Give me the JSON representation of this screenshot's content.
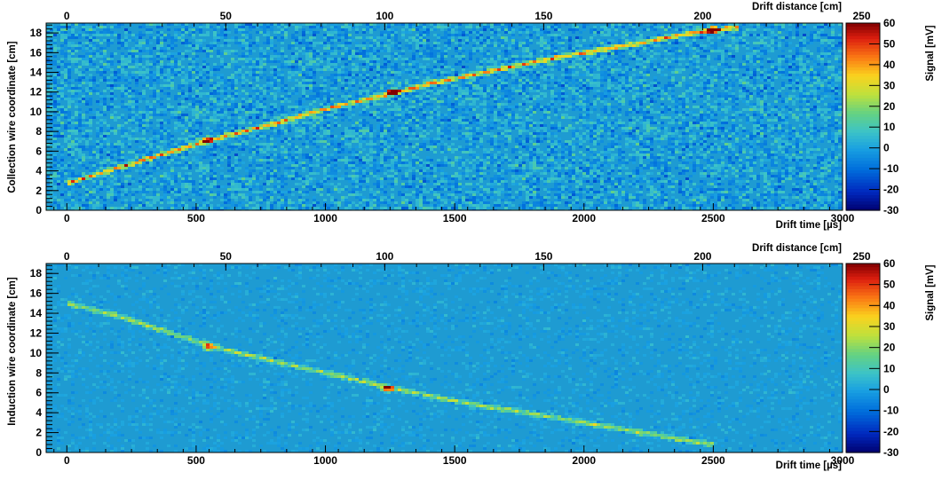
{
  "chart_data": [
    {
      "type": "heatmap",
      "panel": "collection",
      "ylabel": "Collection wire coordinate [cm]",
      "xlabel_bottom": "Drift time [µs]",
      "xlabel_top": "Drift distance [cm]",
      "zlabel": "Signal [mV]",
      "xlim": [
        -80,
        3000
      ],
      "ylim": [
        0,
        19
      ],
      "top_xlim": [
        -6.5,
        244
      ],
      "zlim": [
        -30,
        60
      ],
      "x_ticks": [
        "0",
        "500",
        "1000",
        "1500",
        "2000",
        "2500",
        "3000"
      ],
      "top_ticks": [
        "0",
        "50",
        "100",
        "150",
        "200",
        "250"
      ],
      "y_ticks": [
        "0",
        "2",
        "4",
        "6",
        "8",
        "10",
        "12",
        "14",
        "16",
        "18"
      ],
      "z_ticks": [
        "60",
        "50",
        "40",
        "30",
        "20",
        "10",
        "0",
        "-10",
        "-20",
        "-30"
      ],
      "noise_level": 8,
      "track": {
        "x": [
          0,
          200,
          400,
          600,
          800,
          1000,
          1200,
          1400,
          1600,
          1800,
          2000,
          2200,
          2400,
          2600
        ],
        "y": [
          2.7,
          4.3,
          5.9,
          7.4,
          8.8,
          10.3,
          11.5,
          12.8,
          13.9,
          15.0,
          16.0,
          16.9,
          17.9,
          18.6
        ],
        "signal": 45
      },
      "hotspots": [
        {
          "x": 1260,
          "y": 12.0,
          "signal": 60
        },
        {
          "x": 540,
          "y": 7.1,
          "signal": 55
        },
        {
          "x": 2500,
          "y": 18.3,
          "signal": 60
        }
      ]
    },
    {
      "type": "heatmap",
      "panel": "induction",
      "ylabel": "Induction wire coordinate [cm]",
      "xlabel_bottom": "Drift time [µs]",
      "xlabel_top": "Drift distance [cm]",
      "zlabel": "Signal [mV]",
      "xlim": [
        -80,
        3000
      ],
      "ylim": [
        0,
        19
      ],
      "top_xlim": [
        -6.5,
        244
      ],
      "zlim": [
        -30,
        60
      ],
      "x_ticks": [
        "0",
        "500",
        "1000",
        "1500",
        "2000",
        "2500",
        "3000"
      ],
      "top_ticks": [
        "0",
        "50",
        "100",
        "150",
        "200",
        "250"
      ],
      "y_ticks": [
        "0",
        "2",
        "4",
        "6",
        "8",
        "10",
        "12",
        "14",
        "16",
        "18"
      ],
      "z_ticks": [
        "60",
        "50",
        "40",
        "30",
        "20",
        "10",
        "0",
        "-10",
        "-20",
        "-30"
      ],
      "noise_level": 3,
      "track": {
        "x": [
          0,
          200,
          400,
          600,
          800,
          1000,
          1200,
          1400,
          1600,
          1800,
          2000,
          2200,
          2400,
          2500
        ],
        "y": [
          15.0,
          13.7,
          12.0,
          10.4,
          9.2,
          8.0,
          6.8,
          5.7,
          4.7,
          3.9,
          3.0,
          2.1,
          1.2,
          0.8
        ],
        "signal": 25
      },
      "hotspots": [
        {
          "x": 1240,
          "y": 6.4,
          "signal": 45
        },
        {
          "x": 550,
          "y": 10.6,
          "signal": 40
        }
      ]
    }
  ]
}
